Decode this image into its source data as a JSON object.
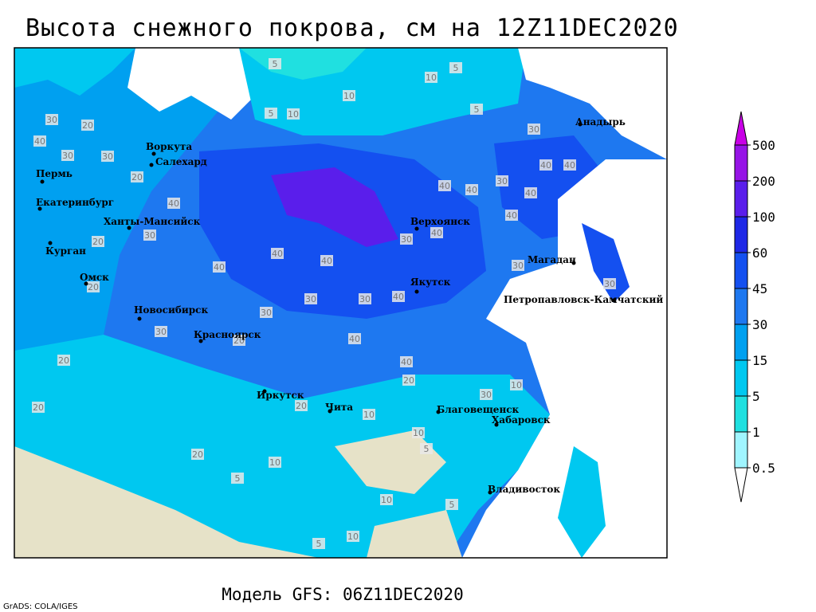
{
  "title": "Высота снежного покрова, см на 12Z11DEC2020",
  "footer": "Модель GFS: 06Z11DEC2020",
  "credit": "GrADS: COLA/IGES",
  "map": {
    "cities": [
      "Воркута",
      "Салехард",
      "Пермь",
      "Екатеринбург",
      "Ханты-Мансийск",
      "Курган",
      "Омск",
      "Новосибирск",
      "Красноярск",
      "Иркутск",
      "Чита",
      "Верхоянск",
      "Якутск",
      "Магадан",
      "Анадырь",
      "Петропавловск-Камчатский",
      "Благовещенск",
      "Хабаровск",
      "Владивосток"
    ],
    "contour_labels": [
      20,
      30,
      40,
      30,
      30,
      20,
      40,
      30,
      20,
      20,
      40,
      40,
      40,
      30,
      30,
      40,
      30,
      40,
      40,
      40,
      30,
      40,
      40,
      30,
      40,
      40,
      30,
      30,
      10,
      10,
      5,
      5,
      5,
      5,
      10,
      20,
      20,
      30,
      10,
      10,
      10,
      5,
      10,
      5,
      10,
      5,
      5,
      10,
      20,
      20,
      40,
      40,
      20,
      30,
      20,
      30
    ]
  },
  "legend": {
    "levels": [
      0.5,
      1,
      5,
      15,
      30,
      45,
      60,
      100,
      200,
      500
    ],
    "colors": [
      "#ffffff",
      "#a0f5ff",
      "#20e0e0",
      "#00c8f0",
      "#00a0f0",
      "#1e78f0",
      "#1450f0",
      "#1e28e6",
      "#5a1eeb",
      "#9614e6",
      "#c800e6"
    ]
  }
}
